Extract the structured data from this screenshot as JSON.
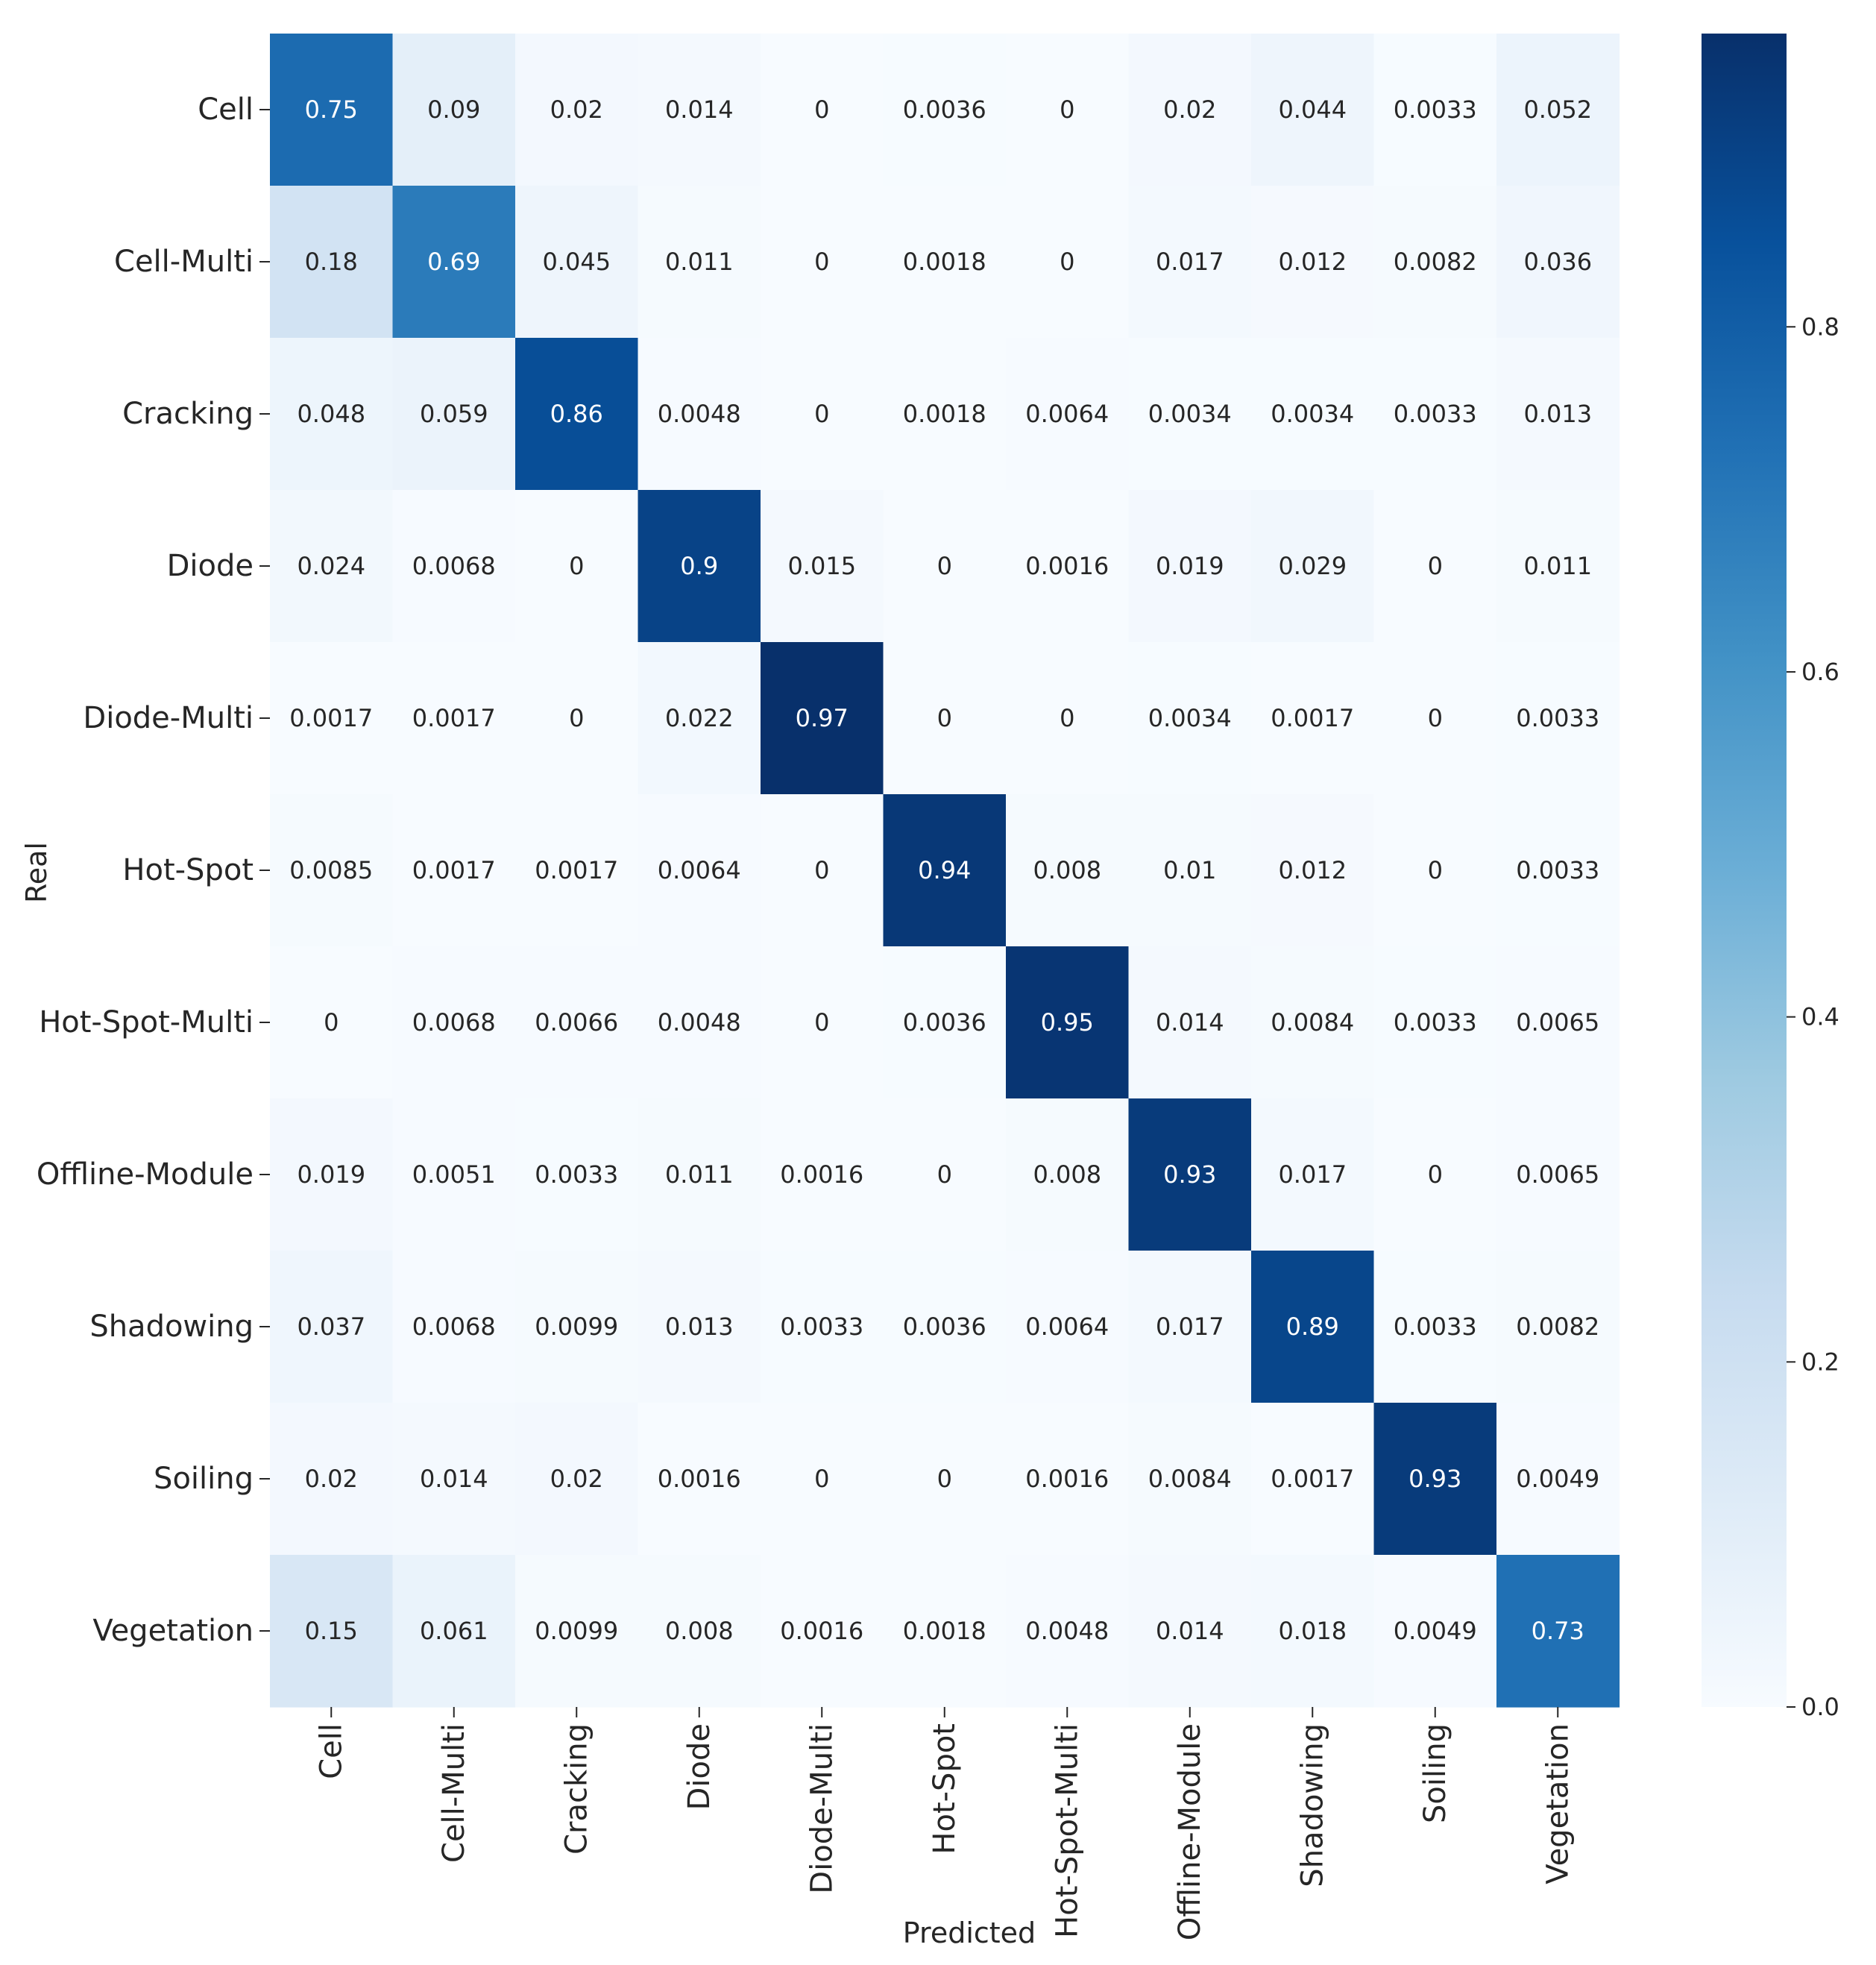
{
  "chart_data": {
    "type": "heatmap",
    "title": "",
    "xlabel": "Predicted",
    "ylabel": "Real",
    "x_categories": [
      "Cell",
      "Cell-Multi",
      "Cracking",
      "Diode",
      "Diode-Multi",
      "Hot-Spot",
      "Hot-Spot-Multi",
      "Offline-Module",
      "Shadowing",
      "Soiling",
      "Vegetation"
    ],
    "y_categories": [
      "Cell",
      "Cell-Multi",
      "Cracking",
      "Diode",
      "Diode-Multi",
      "Hot-Spot",
      "Hot-Spot-Multi",
      "Offline-Module",
      "Shadowing",
      "Soiling",
      "Vegetation"
    ],
    "values": [
      [
        "0.75",
        "0.09",
        "0.02",
        "0.014",
        "0",
        "0.0036",
        "0",
        "0.02",
        "0.044",
        "0.0033",
        "0.052"
      ],
      [
        "0.18",
        "0.69",
        "0.045",
        "0.011",
        "0",
        "0.0018",
        "0",
        "0.017",
        "0.012",
        "0.0082",
        "0.036"
      ],
      [
        "0.048",
        "0.059",
        "0.86",
        "0.0048",
        "0",
        "0.0018",
        "0.0064",
        "0.0034",
        "0.0034",
        "0.0033",
        "0.013"
      ],
      [
        "0.024",
        "0.0068",
        "0",
        "0.9",
        "0.015",
        "0",
        "0.0016",
        "0.019",
        "0.029",
        "0",
        "0.011"
      ],
      [
        "0.0017",
        "0.0017",
        "0",
        "0.022",
        "0.97",
        "0",
        "0",
        "0.0034",
        "0.0017",
        "0",
        "0.0033"
      ],
      [
        "0.0085",
        "0.0017",
        "0.0017",
        "0.0064",
        "0",
        "0.94",
        "0.008",
        "0.01",
        "0.012",
        "0",
        "0.0033"
      ],
      [
        "0",
        "0.0068",
        "0.0066",
        "0.0048",
        "0",
        "0.0036",
        "0.95",
        "0.014",
        "0.0084",
        "0.0033",
        "0.0065"
      ],
      [
        "0.019",
        "0.0051",
        "0.0033",
        "0.011",
        "0.0016",
        "0",
        "0.008",
        "0.93",
        "0.017",
        "0",
        "0.0065"
      ],
      [
        "0.037",
        "0.0068",
        "0.0099",
        "0.013",
        "0.0033",
        "0.0036",
        "0.0064",
        "0.017",
        "0.89",
        "0.0033",
        "0.0082"
      ],
      [
        "0.02",
        "0.014",
        "0.02",
        "0.0016",
        "0",
        "0",
        "0.0016",
        "0.0084",
        "0.0017",
        "0.93",
        "0.0049"
      ],
      [
        "0.15",
        "0.061",
        "0.0099",
        "0.008",
        "0.0016",
        "0.0018",
        "0.0048",
        "0.014",
        "0.018",
        "0.0049",
        "0.73"
      ]
    ],
    "colormap": "Blues",
    "vmin": 0,
    "vmax": 0.97,
    "colorbar_ticks": [
      "0.0",
      "0.2",
      "0.4",
      "0.6",
      "0.8"
    ],
    "grid": false,
    "legend": "colorbar-right"
  },
  "colors": {
    "blues": [
      "#f7fbff",
      "#deebf7",
      "#c6dbef",
      "#9ecae1",
      "#6baed6",
      "#4292c6",
      "#2171b5",
      "#08519c",
      "#08306b"
    ],
    "text_dark": "#262626",
    "text_light": "#ffffff",
    "axis": "#262626"
  }
}
